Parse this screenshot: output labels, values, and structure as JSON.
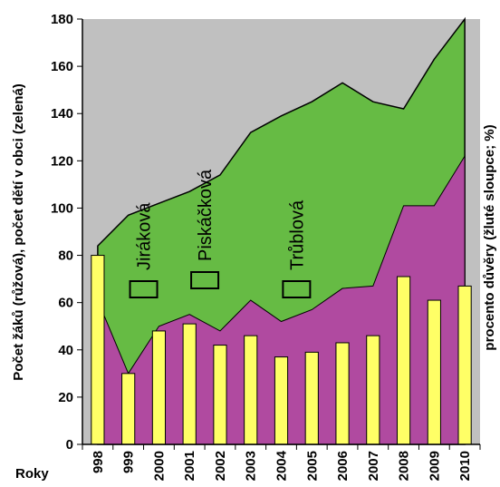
{
  "chart_data": {
    "type": "area",
    "title": "",
    "xlabel": "Roky",
    "ylabel_left": "Počet žáků (růžová), počet dětí v obci (zelená)",
    "ylabel_right": "procento důvěry (žluté sloupce; %)",
    "categories": [
      "1998",
      "1999",
      "2000",
      "2001",
      "2002",
      "2003",
      "2004",
      "2005",
      "2006",
      "2007",
      "2008",
      "2009",
      "2010"
    ],
    "tick_labels": [
      "998",
      "999",
      "2000",
      "2001",
      "2002",
      "2003",
      "2004",
      "2005",
      "2006",
      "2007",
      "2008",
      "2009",
      "2010"
    ],
    "ylim": [
      0,
      180
    ],
    "yticks": [
      0,
      20,
      40,
      60,
      80,
      100,
      120,
      140,
      160,
      180
    ],
    "grid": false,
    "colors": {
      "background": "#c0c0c0",
      "children": "#66bb44",
      "pupils": "#b04aa0",
      "trust": "#ffff66",
      "outline": "#000000"
    },
    "series": [
      {
        "name": "počet dětí v obci",
        "kind": "area",
        "color": "#66bb44",
        "values": [
          84,
          97,
          102,
          107,
          114,
          132,
          139,
          145,
          153,
          145,
          142,
          163,
          180
        ]
      },
      {
        "name": "Počet žáků",
        "kind": "area",
        "color": "#b04aa0",
        "values": [
          61,
          30,
          50,
          55,
          48,
          61,
          52,
          57,
          66,
          67,
          101,
          101,
          122
        ]
      },
      {
        "name": "procento důvěry",
        "kind": "bar",
        "color": "#ffff66",
        "values": [
          80,
          30,
          48,
          51,
          42,
          46,
          37,
          39,
          43,
          46,
          71,
          61,
          67
        ]
      }
    ],
    "annotations": [
      {
        "text": "Jiráková",
        "at_year": "1999"
      },
      {
        "text": "Piskáčková",
        "at_year": "2001"
      },
      {
        "text": "Trůblová",
        "at_year": "2004"
      }
    ]
  }
}
